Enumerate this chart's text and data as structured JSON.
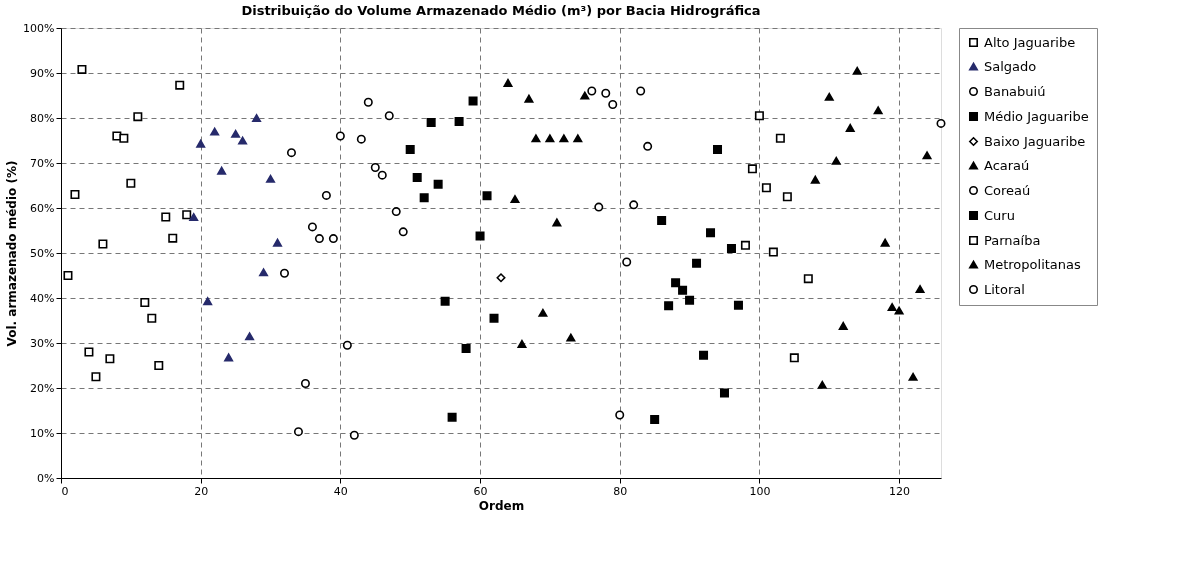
{
  "chart_data": {
    "type": "scatter",
    "title": "Distribuição do Volume Armazenado Médio (m³) por Bacia Hidrográfica",
    "xlabel": "Ordem",
    "ylabel": "Vol. armazenado médio (%)",
    "xlim": [
      0,
      126
    ],
    "xticks": [
      0,
      20,
      40,
      60,
      80,
      100,
      120
    ],
    "ylim": [
      0,
      100
    ],
    "yticks": [
      {
        "value": 0,
        "label": "0%"
      },
      {
        "value": 10,
        "label": "10%"
      },
      {
        "value": 20,
        "label": "20%"
      },
      {
        "value": 30,
        "label": "30%"
      },
      {
        "value": 40,
        "label": "40%"
      },
      {
        "value": 50,
        "label": "50%"
      },
      {
        "value": 60,
        "label": "60%"
      },
      {
        "value": 70,
        "label": "70%"
      },
      {
        "value": 80,
        "label": "80%"
      },
      {
        "value": 90,
        "label": "90%"
      },
      {
        "value": 100,
        "label": "100%"
      }
    ],
    "grid": true,
    "legend": "right",
    "series": [
      {
        "name": "Alto Jaguaribe",
        "color": "#000000",
        "marker": "square-open",
        "x": [
          1,
          2,
          3,
          4,
          5,
          6,
          7,
          8,
          9,
          10,
          11,
          12,
          13,
          14,
          15,
          16,
          17,
          18
        ],
        "values": [
          45,
          63,
          90.8,
          28,
          22.5,
          52,
          26.5,
          76,
          75.5,
          65.5,
          80.3,
          39,
          35.5,
          25,
          58,
          53.3,
          87.3,
          58.5
        ]
      },
      {
        "name": "Salgado",
        "color": "#262a6b",
        "marker": "triangle",
        "x": [
          19,
          20,
          21,
          22,
          23,
          24,
          25,
          26,
          27,
          28,
          29,
          30,
          31
        ],
        "values": [
          58,
          74.3,
          39.3,
          77,
          68.3,
          26.8,
          76.5,
          75,
          31.5,
          80,
          45.7,
          66.5,
          52.3
        ]
      },
      {
        "name": "Banabuiú",
        "color": "#000000",
        "marker": "circle-open",
        "x": [
          32,
          33,
          34,
          35,
          36,
          37,
          38,
          39,
          40,
          41,
          42,
          43,
          44,
          45,
          46,
          47,
          48,
          49
        ],
        "values": [
          45.5,
          72.3,
          10.3,
          21,
          55.8,
          53.2,
          62.8,
          53.2,
          76,
          29.5,
          9.5,
          75.3,
          83.5,
          69,
          67.3,
          80.5,
          59.2,
          54.7
        ]
      },
      {
        "name": "Médio Jaguaribe",
        "color": "#000000",
        "marker": "square",
        "x": [
          50,
          51,
          52,
          53,
          54,
          55,
          56,
          57,
          58,
          59,
          60,
          61,
          62
        ],
        "values": [
          73,
          66.8,
          62.3,
          79,
          65.3,
          39.3,
          13.5,
          79.2,
          28.8,
          83.8,
          53.8,
          62.7,
          35.5
        ]
      },
      {
        "name": "Baixo Jaguaribe",
        "color": "#000000",
        "marker": "diamond-open",
        "x": [
          63
        ],
        "values": [
          44.5
        ]
      },
      {
        "name": "Acaraú",
        "color": "#000000",
        "marker": "triangle",
        "x": [
          64,
          65,
          66,
          67,
          68,
          69,
          70,
          71,
          72,
          73,
          74,
          75
        ],
        "values": [
          87.8,
          62,
          29.8,
          84.3,
          75.5,
          36.7,
          75.5,
          56.8,
          75.5,
          31.2,
          75.5,
          85
        ]
      },
      {
        "name": "Coreaú",
        "color": "#000000",
        "marker": "circle-open",
        "x": [
          76,
          77,
          78,
          79,
          80,
          81,
          82,
          83,
          84
        ],
        "values": [
          86,
          60.2,
          85.5,
          83,
          14,
          48,
          60.7,
          86,
          73.7
        ]
      },
      {
        "name": "Curu",
        "color": "#000000",
        "marker": "square",
        "x": [
          85,
          86,
          87,
          88,
          89,
          90,
          91,
          92,
          93,
          94,
          95,
          96,
          97
        ],
        "values": [
          13,
          57.2,
          38.3,
          43.4,
          41.7,
          39.5,
          47.7,
          27.3,
          54.5,
          73,
          18.9,
          51,
          38.4
        ]
      },
      {
        "name": "Parnaíba",
        "color": "#000000",
        "marker": "square-open",
        "x": [
          98,
          99,
          100,
          101,
          102,
          103,
          104,
          105,
          107
        ],
        "values": [
          51.7,
          68.7,
          80.5,
          64.5,
          50.2,
          75.5,
          62.5,
          26.7,
          44.3
        ]
      },
      {
        "name": "Metropolitanas",
        "color": "#000000",
        "marker": "triangle",
        "x": [
          108,
          109,
          110,
          111,
          112,
          113,
          114,
          117,
          118,
          119,
          120,
          122,
          123,
          124
        ],
        "values": [
          66.3,
          20.7,
          84.7,
          70.5,
          33.8,
          77.8,
          90.5,
          81.7,
          52.3,
          38,
          37.2,
          22.5,
          42,
          71.7
        ]
      },
      {
        "name": "Litoral",
        "color": "#000000",
        "marker": "circle-open",
        "x": [
          126
        ],
        "values": [
          78.8
        ]
      }
    ]
  }
}
